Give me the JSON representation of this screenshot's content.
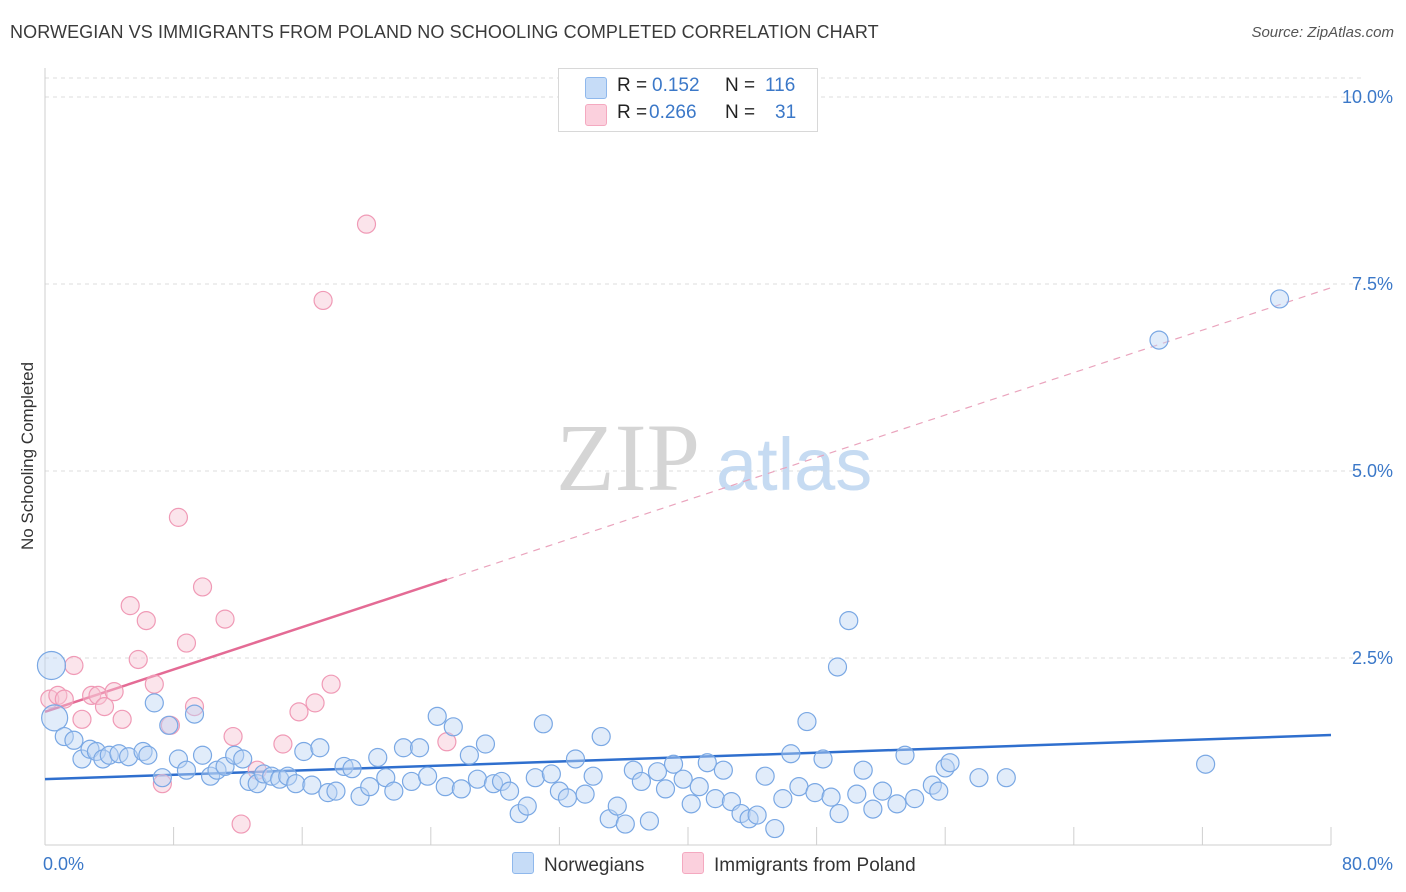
{
  "header": {
    "title": "NORWEGIAN VS IMMIGRANTS FROM POLAND NO SCHOOLING COMPLETED CORRELATION CHART",
    "source": "Source: ZipAtlas.com"
  },
  "watermark": {
    "zip": "ZIP",
    "atlas": "atlas"
  },
  "legend": {
    "items": [
      {
        "r_label": "R =",
        "r_value": "0.152",
        "n_label": "N =",
        "n_value": "116",
        "color": "#a8c8f0"
      },
      {
        "r_label": "R =",
        "r_value": "0.266",
        "n_label": "N =",
        "n_value": "31",
        "color": "#f7b8cb"
      }
    ]
  },
  "bottom_legend": {
    "norwegians": "Norwegians",
    "poland": "Immigrants from Poland"
  },
  "chart_data": {
    "type": "scatter",
    "title": "NORWEGIAN VS IMMIGRANTS FROM POLAND NO SCHOOLING COMPLETED CORRELATION CHART",
    "xlabel": "",
    "ylabel": "No Schooling Completed",
    "xlim": [
      0,
      80
    ],
    "ylim": [
      0,
      10.5
    ],
    "x_tick_labels": [
      "0.0%",
      "80.0%"
    ],
    "y_ticks": [
      {
        "value": 2.5,
        "label": "2.5%"
      },
      {
        "value": 5.0,
        "label": "5.0%"
      },
      {
        "value": 7.5,
        "label": "7.5%"
      },
      {
        "value": 10.0,
        "label": "10.0%"
      }
    ],
    "grid": true,
    "series": [
      {
        "name": "Norwegians",
        "color": "#8fb8ec",
        "line_color": "#2f6fce",
        "trend": {
          "x0": 0,
          "y0": 0.88,
          "x1": 80,
          "y1": 1.47
        },
        "points": [
          [
            0.4,
            2.4
          ],
          [
            0.6,
            1.7
          ],
          [
            1.2,
            1.45
          ],
          [
            1.8,
            1.4
          ],
          [
            2.3,
            1.15
          ],
          [
            2.8,
            1.28
          ],
          [
            3.2,
            1.25
          ],
          [
            3.6,
            1.15
          ],
          [
            4.0,
            1.2
          ],
          [
            4.6,
            1.22
          ],
          [
            5.2,
            1.18
          ],
          [
            6.1,
            1.25
          ],
          [
            6.4,
            1.2
          ],
          [
            6.8,
            1.9
          ],
          [
            7.3,
            0.9
          ],
          [
            7.7,
            1.6
          ],
          [
            8.3,
            1.15
          ],
          [
            8.8,
            1.0
          ],
          [
            9.3,
            1.75
          ],
          [
            9.8,
            1.2
          ],
          [
            10.3,
            0.92
          ],
          [
            10.7,
            1.0
          ],
          [
            11.2,
            1.05
          ],
          [
            11.8,
            1.2
          ],
          [
            12.3,
            1.15
          ],
          [
            12.7,
            0.85
          ],
          [
            13.2,
            0.82
          ],
          [
            13.6,
            0.95
          ],
          [
            14.1,
            0.92
          ],
          [
            14.6,
            0.88
          ],
          [
            15.1,
            0.92
          ],
          [
            15.6,
            0.82
          ],
          [
            16.1,
            1.25
          ],
          [
            16.6,
            0.8
          ],
          [
            17.1,
            1.3
          ],
          [
            17.6,
            0.7
          ],
          [
            18.1,
            0.72
          ],
          [
            18.6,
            1.05
          ],
          [
            19.1,
            1.02
          ],
          [
            19.6,
            0.65
          ],
          [
            20.2,
            0.78
          ],
          [
            20.7,
            1.17
          ],
          [
            21.2,
            0.9
          ],
          [
            21.7,
            0.72
          ],
          [
            22.3,
            1.3
          ],
          [
            22.8,
            0.85
          ],
          [
            23.3,
            1.3
          ],
          [
            23.8,
            0.92
          ],
          [
            24.4,
            1.72
          ],
          [
            24.9,
            0.78
          ],
          [
            25.4,
            1.58
          ],
          [
            25.9,
            0.75
          ],
          [
            26.4,
            1.2
          ],
          [
            26.9,
            0.88
          ],
          [
            27.4,
            1.35
          ],
          [
            27.9,
            0.82
          ],
          [
            28.4,
            0.85
          ],
          [
            28.9,
            0.72
          ],
          [
            29.5,
            0.42
          ],
          [
            30.0,
            0.52
          ],
          [
            30.5,
            0.9
          ],
          [
            31.0,
            1.62
          ],
          [
            31.5,
            0.95
          ],
          [
            32.0,
            0.72
          ],
          [
            32.5,
            0.63
          ],
          [
            33.0,
            1.15
          ],
          [
            33.6,
            0.68
          ],
          [
            34.1,
            0.92
          ],
          [
            34.6,
            1.45
          ],
          [
            35.1,
            0.35
          ],
          [
            35.6,
            0.52
          ],
          [
            36.1,
            0.28
          ],
          [
            36.6,
            1.0
          ],
          [
            37.1,
            0.85
          ],
          [
            37.6,
            0.32
          ],
          [
            38.1,
            0.98
          ],
          [
            38.6,
            0.75
          ],
          [
            39.1,
            1.08
          ],
          [
            39.7,
            0.88
          ],
          [
            40.2,
            0.55
          ],
          [
            40.7,
            0.78
          ],
          [
            41.2,
            1.1
          ],
          [
            41.7,
            0.62
          ],
          [
            42.2,
            1.0
          ],
          [
            42.7,
            0.58
          ],
          [
            43.3,
            0.42
          ],
          [
            43.8,
            0.35
          ],
          [
            44.3,
            0.4
          ],
          [
            44.8,
            0.92
          ],
          [
            45.4,
            0.22
          ],
          [
            45.9,
            0.62
          ],
          [
            46.4,
            1.22
          ],
          [
            46.9,
            0.78
          ],
          [
            47.4,
            1.65
          ],
          [
            47.9,
            0.7
          ],
          [
            48.4,
            1.15
          ],
          [
            48.9,
            0.64
          ],
          [
            49.4,
            0.42
          ],
          [
            50.0,
            3.0
          ],
          [
            50.5,
            0.68
          ],
          [
            50.9,
            1.0
          ],
          [
            51.5,
            0.48
          ],
          [
            52.1,
            0.72
          ],
          [
            53.0,
            0.55
          ],
          [
            53.5,
            1.2
          ],
          [
            54.1,
            0.62
          ],
          [
            55.2,
            0.8
          ],
          [
            55.6,
            0.72
          ],
          [
            56.0,
            1.03
          ],
          [
            56.3,
            1.1
          ],
          [
            58.1,
            0.9
          ],
          [
            59.8,
            0.9
          ],
          [
            69.3,
            6.75
          ],
          [
            72.2,
            1.08
          ],
          [
            76.8,
            7.3
          ],
          [
            49.3,
            2.38
          ]
        ]
      },
      {
        "name": "Immigrants from Poland",
        "color": "#f4a9c0",
        "line_color": "#e46b95",
        "trend": {
          "x0": 0,
          "y0": 1.78,
          "x1": 25,
          "y1": 3.55
        },
        "trend_extension": {
          "x0": 25,
          "y0": 3.55,
          "x1": 80,
          "y1": 7.45
        },
        "points": [
          [
            0.3,
            1.95
          ],
          [
            0.8,
            2.0
          ],
          [
            1.2,
            1.95
          ],
          [
            1.8,
            2.4
          ],
          [
            2.3,
            1.68
          ],
          [
            2.9,
            2.0
          ],
          [
            3.3,
            2.0
          ],
          [
            3.7,
            1.85
          ],
          [
            4.3,
            2.05
          ],
          [
            4.8,
            1.68
          ],
          [
            5.3,
            3.2
          ],
          [
            5.8,
            2.48
          ],
          [
            6.3,
            3.0
          ],
          [
            6.8,
            2.15
          ],
          [
            7.3,
            0.82
          ],
          [
            7.8,
            1.6
          ],
          [
            8.3,
            4.38
          ],
          [
            8.8,
            2.7
          ],
          [
            9.3,
            1.85
          ],
          [
            9.8,
            3.45
          ],
          [
            11.2,
            3.02
          ],
          [
            11.7,
            1.45
          ],
          [
            12.2,
            0.28
          ],
          [
            13.2,
            1.0
          ],
          [
            14.8,
            1.35
          ],
          [
            15.8,
            1.78
          ],
          [
            16.8,
            1.9
          ],
          [
            17.3,
            7.28
          ],
          [
            17.8,
            2.15
          ],
          [
            20.0,
            8.3
          ],
          [
            25.0,
            1.38
          ]
        ]
      }
    ]
  }
}
